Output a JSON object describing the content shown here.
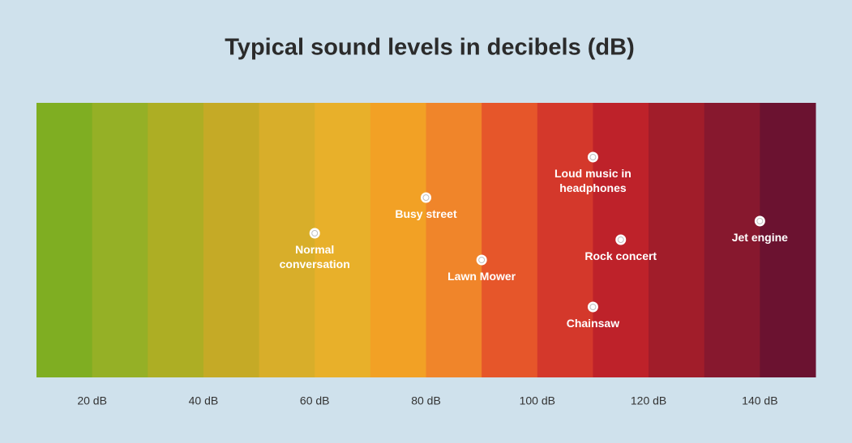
{
  "chart_data": {
    "type": "dot",
    "title": "Typical sound levels in decibels (dB)",
    "xlim": [
      10,
      150
    ],
    "xticks": [
      {
        "value": 20,
        "label": "20 dB"
      },
      {
        "value": 40,
        "label": "40 dB"
      },
      {
        "value": 60,
        "label": "60 dB"
      },
      {
        "value": 80,
        "label": "80 dB"
      },
      {
        "value": 100,
        "label": "100 dB"
      },
      {
        "value": 120,
        "label": "120 dB"
      },
      {
        "value": 140,
        "label": "140 dB"
      }
    ],
    "band_colors": [
      "#7fae22",
      "#95b026",
      "#adae24",
      "#c5aa26",
      "#d8ae2a",
      "#e8b02a",
      "#f2a125",
      "#f0852a",
      "#e6562a",
      "#d4382b",
      "#be222a",
      "#a11d2a",
      "#87182e",
      "#6b1230"
    ],
    "categories": [
      "Normal conversation",
      "Busy street",
      "Lawn Mower",
      "Loud music in headphones",
      "Rock concert",
      "Chainsaw",
      "Jet engine"
    ],
    "values": [
      60,
      80,
      90,
      110,
      115,
      110,
      140
    ],
    "color": "#ffffff"
  }
}
